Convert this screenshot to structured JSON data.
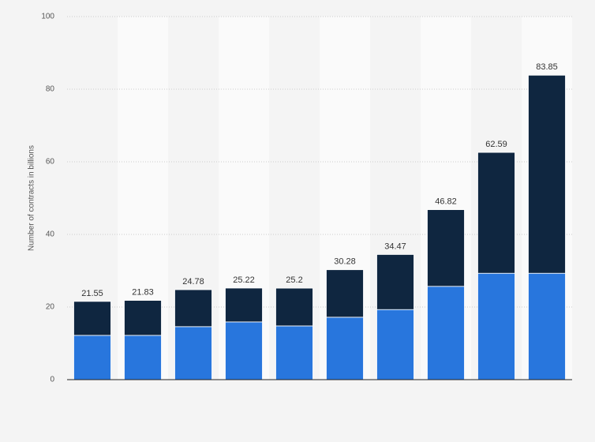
{
  "chart_data": {
    "type": "stacked-bar",
    "y_label": "Number of contracts in billions",
    "categories": [
      null,
      null,
      null,
      null,
      null,
      null,
      null,
      null,
      null,
      null
    ],
    "series": [
      {
        "color": "#2876dd",
        "values": [
          12.2,
          12.2,
          14.6,
          15.9,
          14.8,
          17.2,
          19.3,
          25.7,
          29.3,
          29.3
        ]
      },
      {
        "color": "#0f2640",
        "values": [
          9.35,
          9.63,
          10.18,
          9.32,
          10.4,
          13.08,
          15.17,
          21.12,
          33.29,
          54.55
        ]
      }
    ],
    "totals": [
      21.55,
      21.83,
      24.78,
      25.22,
      25.2,
      30.28,
      34.47,
      46.82,
      62.59,
      83.85
    ],
    "ylim": [
      0,
      100
    ],
    "yticks": [
      0,
      20,
      40,
      60,
      80,
      100
    ],
    "grid": true
  }
}
